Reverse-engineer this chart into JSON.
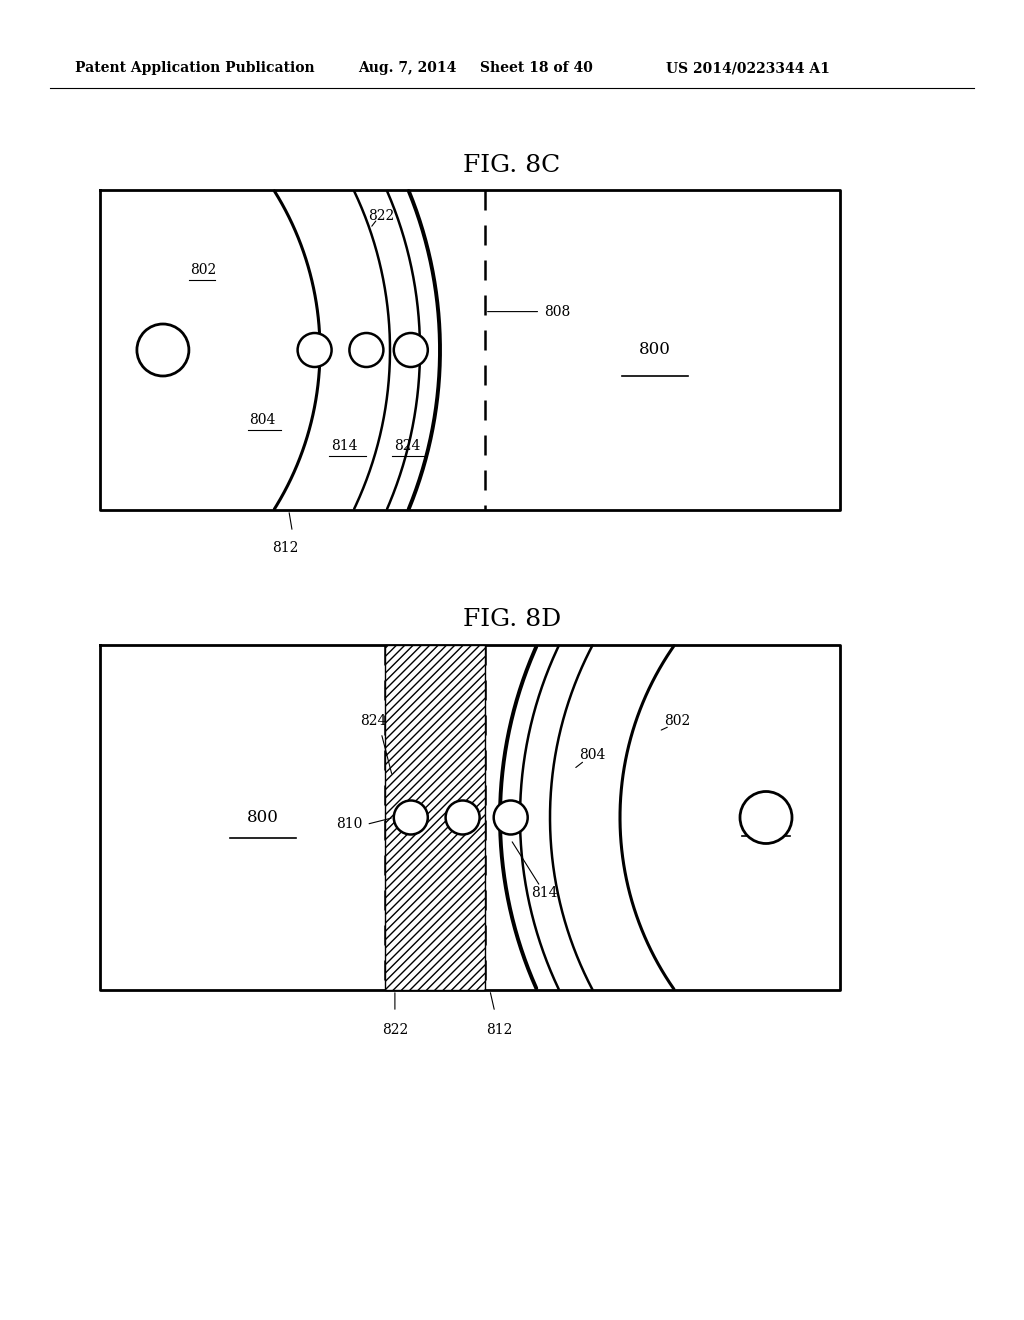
{
  "bg_color": "#ffffff",
  "header_text": "Patent Application Publication",
  "header_date": "Aug. 7, 2014",
  "header_sheet": "Sheet 18 of 40",
  "header_patent": "US 2014/0223344 A1",
  "fig8c_title": "FIG. 8C",
  "fig8d_title": "FIG. 8D",
  "line_color": "#000000"
}
